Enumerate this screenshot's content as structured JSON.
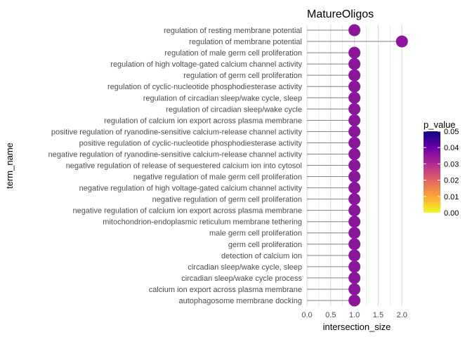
{
  "chart_data": {
    "type": "lollipop",
    "title": "MatureOligos",
    "xlabel": "intersection_size",
    "ylabel": "term_name",
    "xlim": [
      0,
      2.1
    ],
    "x_ticks": [
      "0.0",
      "0.5",
      "1.0",
      "1.5",
      "2.0"
    ],
    "x_tick_values": [
      0,
      0.5,
      1.0,
      1.5,
      2.0
    ],
    "grid": "vertical",
    "terms": [
      {
        "name": "regulation of resting membrane potential",
        "value": 1,
        "p_value": 0.035
      },
      {
        "name": "regulation of membrane potential",
        "value": 2,
        "p_value": 0.035
      },
      {
        "name": "regulation of male germ cell proliferation",
        "value": 1,
        "p_value": 0.035
      },
      {
        "name": "regulation of high voltage-gated calcium channel activity",
        "value": 1,
        "p_value": 0.035
      },
      {
        "name": "regulation of germ cell proliferation",
        "value": 1,
        "p_value": 0.035
      },
      {
        "name": "regulation of cyclic-nucleotide phosphodiesterase activity",
        "value": 1,
        "p_value": 0.035
      },
      {
        "name": "regulation of circadian sleep/wake cycle, sleep",
        "value": 1,
        "p_value": 0.035
      },
      {
        "name": "regulation of circadian sleep/wake cycle",
        "value": 1,
        "p_value": 0.035
      },
      {
        "name": "regulation of calcium ion export across plasma membrane",
        "value": 1,
        "p_value": 0.035
      },
      {
        "name": "positive regulation of ryanodine-sensitive calcium-release channel activity",
        "value": 1,
        "p_value": 0.035
      },
      {
        "name": "positive regulation of cyclic-nucleotide phosphodiesterase activity",
        "value": 1,
        "p_value": 0.035
      },
      {
        "name": "negative regulation of ryanodine-sensitive calcium-release channel activity",
        "value": 1,
        "p_value": 0.035
      },
      {
        "name": "negative regulation of release of sequestered calcium ion into cytosol",
        "value": 1,
        "p_value": 0.035
      },
      {
        "name": "negative regulation of male germ cell proliferation",
        "value": 1,
        "p_value": 0.035
      },
      {
        "name": "negative regulation of high voltage-gated calcium channel activity",
        "value": 1,
        "p_value": 0.035
      },
      {
        "name": "negative regulation of germ cell proliferation",
        "value": 1,
        "p_value": 0.035
      },
      {
        "name": "negative regulation of calcium ion export across plasma membrane",
        "value": 1,
        "p_value": 0.035
      },
      {
        "name": "mitochondrion-endoplasmic reticulum membrane tethering",
        "value": 1,
        "p_value": 0.035
      },
      {
        "name": "male germ cell proliferation",
        "value": 1,
        "p_value": 0.035
      },
      {
        "name": "germ cell proliferation",
        "value": 1,
        "p_value": 0.035
      },
      {
        "name": "detection of calcium ion",
        "value": 1,
        "p_value": 0.035
      },
      {
        "name": "circadian sleep/wake cycle, sleep",
        "value": 1,
        "p_value": 0.035
      },
      {
        "name": "circadian sleep/wake cycle process",
        "value": 1,
        "p_value": 0.035
      },
      {
        "name": "calcium ion export across plasma membrane",
        "value": 1,
        "p_value": 0.035
      },
      {
        "name": "autophagosome membrane docking",
        "value": 1,
        "p_value": 0.035
      }
    ],
    "legend": {
      "title": "p_value",
      "position": "right",
      "ticks": [
        "0.05",
        "0.04",
        "0.03",
        "0.02",
        "0.01",
        "0.00"
      ],
      "tick_values": [
        0.05,
        0.04,
        0.03,
        0.02,
        0.01,
        0.0
      ],
      "range": [
        0,
        0.05
      ],
      "colors_low_to_high": [
        "#f0f921",
        "#fca636",
        "#e16462",
        "#b12a90",
        "#6a00a8",
        "#0d0887"
      ]
    },
    "colors": {
      "stem": "#7f7f7f",
      "point": "#ae2a9a",
      "grid": "#d9d9d9"
    }
  }
}
